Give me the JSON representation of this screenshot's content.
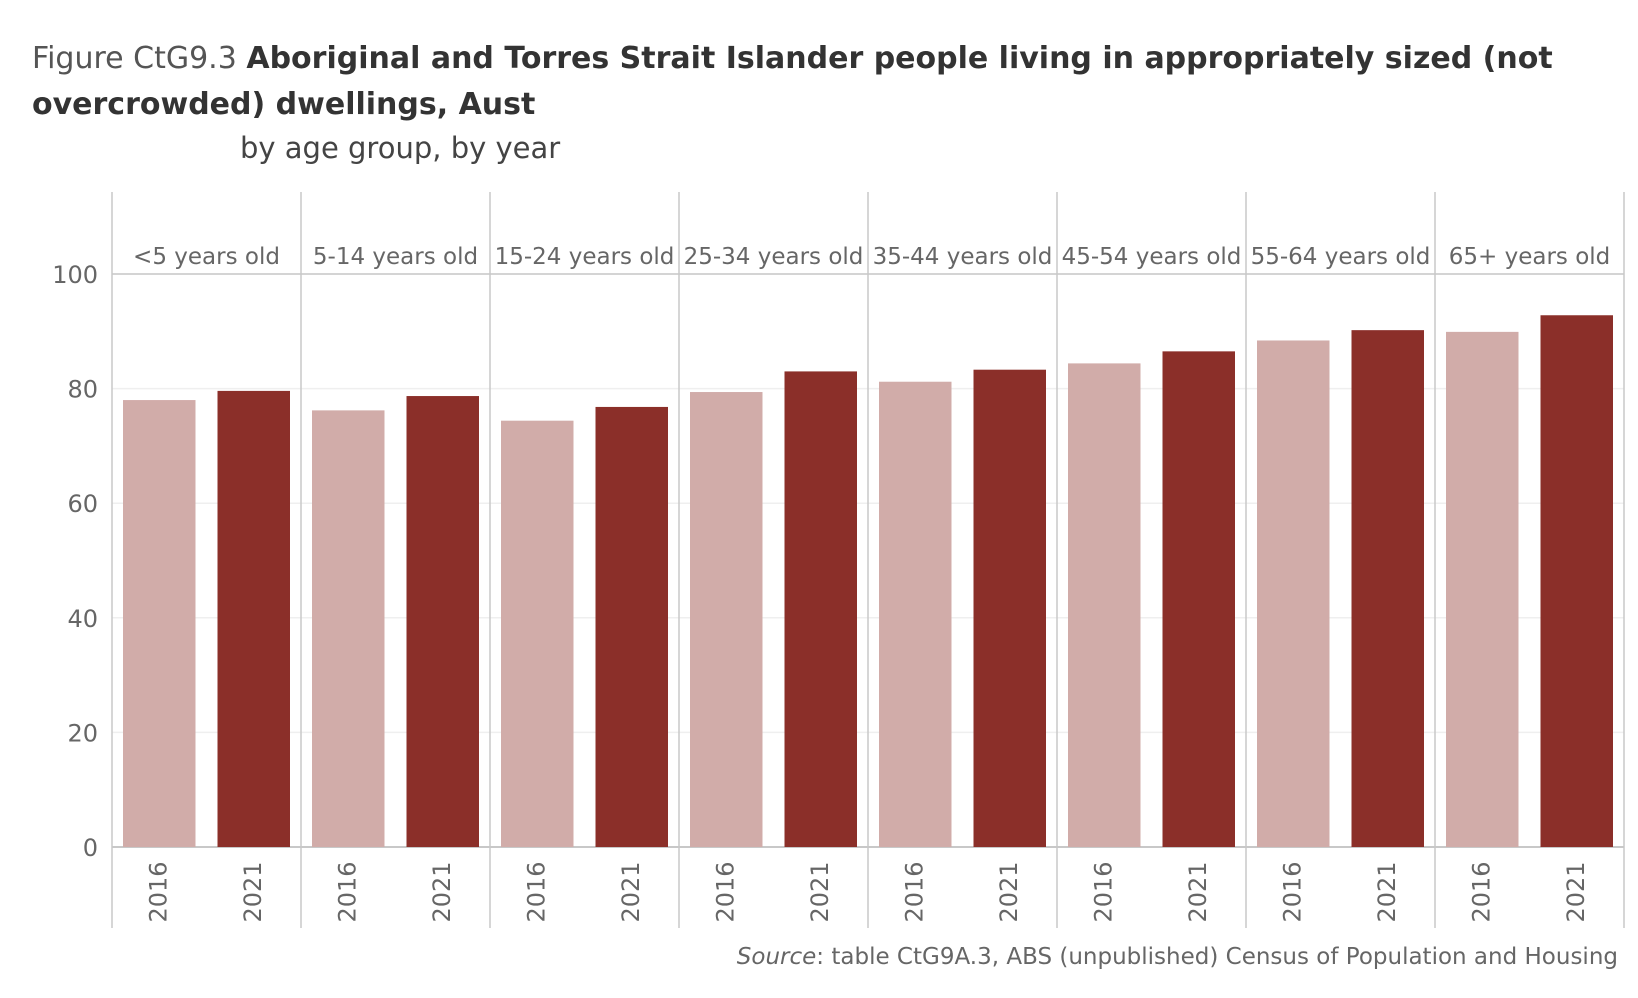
{
  "title": {
    "prefix": "Figure CtG9.3",
    "main": "Aboriginal and Torres Strait Islander people living in appropriately sized (not overcrowded) dwellings, Aust",
    "subtitle": "by age group, by year"
  },
  "source": {
    "label": "Source",
    "text": ": table CtG9A.3, ABS (unpublished) Census of Population and Housing"
  },
  "colors": {
    "2016": "#d1aca9",
    "2021": "#8b2f29",
    "axis": "#c8c8c8",
    "grid": "#efefef",
    "text": "#666666"
  },
  "chart_data": {
    "type": "bar",
    "categories": [
      "<5 years old",
      "5-14 years old",
      "15-24 years old",
      "25-34 years old",
      "35-44 years old",
      "45-54 years old",
      "55-64 years old",
      "65+ years old"
    ],
    "x_tick_labels": [
      "2016",
      "2021"
    ],
    "series": [
      {
        "name": "2016",
        "values": [
          78.0,
          76.2,
          74.4,
          79.4,
          81.2,
          84.4,
          88.4,
          89.9
        ]
      },
      {
        "name": "2021",
        "values": [
          79.6,
          78.7,
          76.8,
          83.0,
          83.3,
          86.5,
          90.2,
          92.8
        ]
      }
    ],
    "ylim": [
      0,
      100
    ],
    "y_ticks": [
      0,
      20,
      40,
      60,
      80,
      100
    ],
    "xlabel": "",
    "ylabel": "",
    "grid": true,
    "legend": "none"
  }
}
